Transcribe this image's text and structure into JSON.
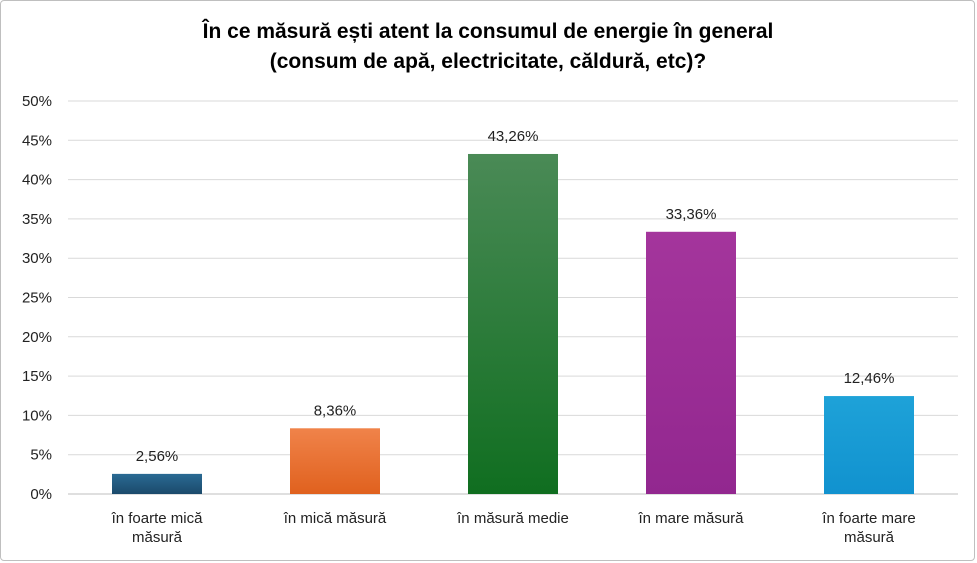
{
  "chart_data": {
    "type": "bar",
    "title_lines": [
      "În ce măsură ești atent la consumul de energie în general",
      "(consum de apă, electricitate, căldură, etc)?"
    ],
    "categories": [
      [
        "în foarte mică",
        "măsură"
      ],
      [
        "în mică măsură"
      ],
      [
        "în măsură medie"
      ],
      [
        "în mare măsură"
      ],
      [
        "în foarte mare",
        "măsură"
      ]
    ],
    "values": [
      2.56,
      8.36,
      43.26,
      33.36,
      12.46
    ],
    "value_labels": [
      "2,56%",
      "8,36%",
      "43,26%",
      "33,36%",
      "12,46%"
    ],
    "colors": [
      [
        "#2a6a93",
        "#1b4a6b"
      ],
      [
        "#f0834a",
        "#e0611e"
      ],
      [
        "#4a8a56",
        "#106e20"
      ],
      [
        "#a4359c",
        "#92278f"
      ],
      [
        "#1ea2d8",
        "#1192cf"
      ]
    ],
    "ylim": [
      0,
      50
    ],
    "yticks": [
      "0%",
      "5%",
      "10%",
      "15%",
      "20%",
      "25%",
      "30%",
      "35%",
      "40%",
      "45%",
      "50%"
    ],
    "grid": true,
    "legend": "none"
  }
}
